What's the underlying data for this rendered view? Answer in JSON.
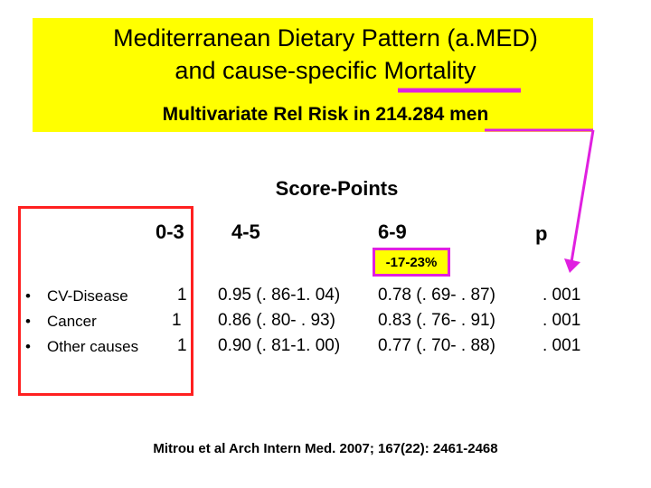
{
  "header": {
    "title_line1": "Mediterranean Dietary Pattern (a.MED)",
    "title_line2": "and cause-specific Mortality",
    "subtitle": "Multivariate Rel Risk in 214.284  men",
    "highlight_color": "#ffff00",
    "accent_color": "#e020e0"
  },
  "table": {
    "score_header": "Score-Points",
    "columns": [
      "0-3",
      "4-5",
      "6-9",
      "p"
    ],
    "range_note": "-17-23%",
    "rows": [
      {
        "label": "CV-Disease",
        "ref": "1",
        "mid": "0.95 (. 86-1. 04)",
        "high": "0.78 (. 69- . 87)",
        "p": ". 001"
      },
      {
        "label": "Cancer",
        "ref": "1",
        "mid": "0.86 (. 80- . 93)",
        "high": "0.83 (. 76- . 91)",
        "p": ". 001"
      },
      {
        "label": "Other causes",
        "ref": "1",
        "mid": "0.90 (. 81-1. 00)",
        "high": "0.77 (. 70- . 88)",
        "p": ". 001"
      }
    ],
    "frame_color": "#ff2020"
  },
  "footer": {
    "citation": "Mitrou et al Arch Intern Med. 2007; 167(22): 2461-2468"
  }
}
